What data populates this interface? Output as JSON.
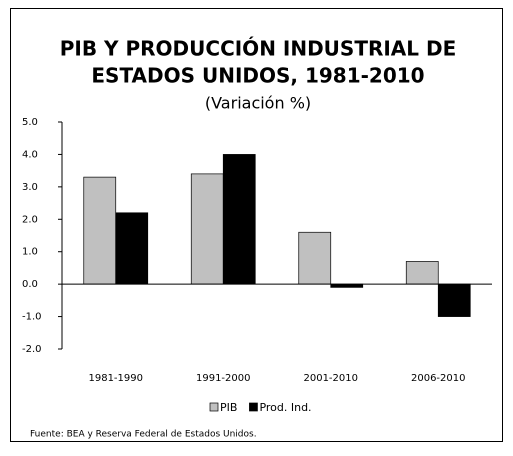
{
  "chart_data": {
    "type": "bar",
    "title": [
      "PIB Y PRODUCCIÓN INDUSTRIAL DE",
      "ESTADOS UNIDOS, 1981-2010"
    ],
    "subtitle": "(Variación %)",
    "categories": [
      "1981-1990",
      "1991-2000",
      "2001-2010",
      "2006-2010"
    ],
    "series": [
      {
        "name": "PIB",
        "color": "#c0c0c0",
        "values": [
          3.3,
          3.4,
          1.6,
          0.7
        ]
      },
      {
        "name": "Prod. Ind.",
        "color": "#000000",
        "values": [
          2.2,
          4.0,
          -0.1,
          -1.0
        ]
      }
    ],
    "ylim": [
      -2,
      5
    ],
    "yticks": [
      {
        "value": -2,
        "label": "-2.0"
      },
      {
        "value": -1,
        "label": "-1.0"
      },
      {
        "value": 0,
        "label": "0.0"
      },
      {
        "value": 1,
        "label": "1.0"
      },
      {
        "value": 2,
        "label": "2.0"
      },
      {
        "value": 3,
        "label": "3.0"
      },
      {
        "value": 4,
        "label": "4.0"
      },
      {
        "value": 5,
        "label": "5.0"
      }
    ],
    "legend": "bottom",
    "source": "Fuente: BEA y Reserva Federal de Estados Unidos."
  }
}
